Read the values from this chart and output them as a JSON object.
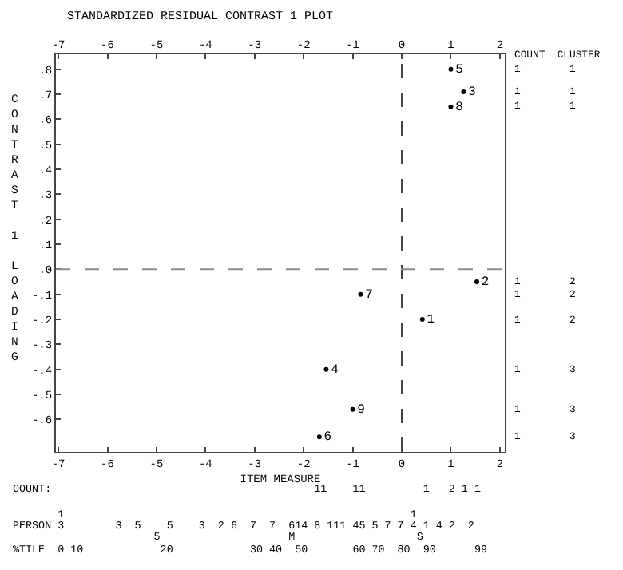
{
  "chart_data": {
    "type": "scatter",
    "title": "STANDARDIZED RESIDUAL CONTRAST 1 PLOT",
    "xlabel": "ITEM MEASURE",
    "ylabel": "CONTRAST 1 LOADING",
    "series": [
      {
        "name": "5",
        "x": [
          1.0
        ],
        "values": [
          0.8
        ]
      },
      {
        "name": "3",
        "x": [
          1.26
        ],
        "values": [
          0.71
        ]
      },
      {
        "name": "8",
        "x": [
          1.0
        ],
        "values": [
          0.65
        ]
      },
      {
        "name": "2",
        "x": [
          1.53
        ],
        "values": [
          -0.05
        ]
      },
      {
        "name": "7",
        "x": [
          -0.84
        ],
        "values": [
          -0.1
        ]
      },
      {
        "name": "1",
        "x": [
          0.42
        ],
        "values": [
          -0.2
        ]
      },
      {
        "name": "4",
        "x": [
          -1.54
        ],
        "values": [
          -0.4
        ]
      },
      {
        "name": "9",
        "x": [
          -1.0
        ],
        "values": [
          -0.56
        ]
      },
      {
        "name": "6",
        "x": [
          -1.68
        ],
        "values": [
          -0.67
        ]
      }
    ],
    "color": "#000000",
    "marker": "circle",
    "xlim": [
      -7.05,
      2.1
    ],
    "xticks": [
      -7,
      -6,
      -5,
      -4,
      -3,
      -2,
      -1,
      0,
      1,
      2
    ],
    "x2lim": [
      -7.05,
      2.1
    ],
    "x2ticks": [
      -7,
      -6,
      -5,
      -4,
      -3,
      -2,
      -1,
      0,
      1,
      2
    ],
    "ylim": [
      -0.73,
      0.86
    ],
    "yticks": [
      {
        "value": 0.8,
        "label": ".8"
      },
      {
        "value": 0.7,
        "label": ".7"
      },
      {
        "value": 0.6,
        "label": ".6"
      },
      {
        "value": 0.5,
        "label": ".5"
      },
      {
        "value": 0.4,
        "label": ".4"
      },
      {
        "value": 0.3,
        "label": ".3"
      },
      {
        "value": 0.2,
        "label": ".2"
      },
      {
        "value": 0.1,
        "label": ".1"
      },
      {
        "value": 0,
        "label": ".0"
      },
      {
        "value": -0.1,
        "label": "-.1"
      },
      {
        "value": -0.2,
        "label": "-.2"
      },
      {
        "value": -0.3,
        "label": "-.3"
      },
      {
        "value": -0.4,
        "label": "-.4"
      },
      {
        "value": -0.5,
        "label": "-.5"
      },
      {
        "value": -0.6,
        "label": "-.6"
      }
    ],
    "ref_lines": [
      {
        "axis": "x",
        "value": 0,
        "line_style": "dashed",
        "color": "#444444"
      },
      {
        "axis": "y",
        "value": 0,
        "line_style": "dashed",
        "color": "#8a8a8a"
      }
    ],
    "legend": false,
    "annotations": [
      "COUNT  CLUSTER",
      "1        1",
      "1        1",
      "1        1",
      "1        2",
      "1        2",
      "1        2",
      "1        3",
      "1        3",
      "1        3",
      "COUNT:                                         11    11         1   2 1 1",
      "       1                                                      1",
      "PERSON 3        3  5    5    3  2 6  7  7  614 8 111 45 5 7 7 4 1 4 2  2",
      "                      5                    M                   S",
      "%TILE  0 10            20            30 40  50       60 70  80  90      99"
    ]
  }
}
